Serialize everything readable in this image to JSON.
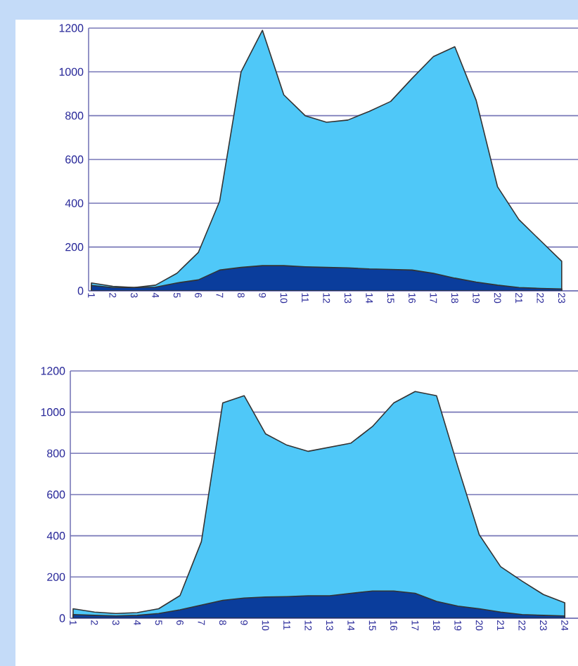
{
  "chart_data": [
    {
      "type": "area",
      "categories": [
        "1",
        "2",
        "3",
        "4",
        "5",
        "6",
        "7",
        "8",
        "9",
        "10",
        "11",
        "12",
        "13",
        "14",
        "15",
        "16",
        "17",
        "18",
        "19",
        "20",
        "21",
        "22",
        "23"
      ],
      "ylim": [
        0,
        1200
      ],
      "yticks": [
        0,
        200,
        400,
        600,
        800,
        1000,
        1200
      ],
      "grid": "y",
      "series": [
        {
          "color": "#4fc8f8",
          "values": [
            36,
            21,
            15,
            26,
            80,
            175,
            410,
            1000,
            1190,
            895,
            800,
            770,
            780,
            820,
            865,
            970,
            1070,
            1115,
            870,
            475,
            325,
            230,
            135
          ]
        },
        {
          "color": "#0a3d9c",
          "values": [
            25,
            15,
            15,
            17,
            36,
            50,
            95,
            107,
            115,
            115,
            110,
            107,
            105,
            100,
            98,
            95,
            80,
            58,
            40,
            26,
            15,
            11,
            9
          ]
        }
      ]
    },
    {
      "type": "area",
      "categories": [
        "1",
        "2",
        "3",
        "4",
        "5",
        "6",
        "7",
        "8",
        "9",
        "10",
        "11",
        "12",
        "13",
        "14",
        "15",
        "16",
        "17",
        "18",
        "19",
        "20",
        "21",
        "22",
        "23",
        "24"
      ],
      "ylim": [
        0,
        1200
      ],
      "yticks": [
        0,
        200,
        400,
        600,
        800,
        1000,
        1200
      ],
      "grid": "y",
      "series": [
        {
          "color": "#4fc8f8",
          "values": [
            46,
            30,
            23,
            27,
            46,
            110,
            372,
            1045,
            1080,
            895,
            840,
            810,
            830,
            850,
            930,
            1045,
            1100,
            1080,
            735,
            405,
            250,
            180,
            115,
            75
          ]
        },
        {
          "color": "#0a3d9c",
          "values": [
            18,
            14,
            11,
            14,
            23,
            41,
            64,
            87,
            98,
            103,
            105,
            109,
            109,
            121,
            132,
            132,
            121,
            82,
            59,
            46,
            30,
            18,
            14,
            11
          ]
        }
      ]
    }
  ]
}
